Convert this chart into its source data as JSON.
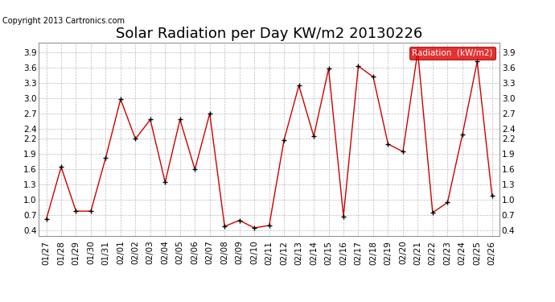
{
  "title": "Solar Radiation per Day KW/m2 20130226",
  "copyright": "Copyright 2013 Cartronics.com",
  "legend_label": "Radiation  (kW/m2)",
  "dates": [
    "01/27",
    "01/28",
    "01/29",
    "01/30",
    "01/31",
    "02/01",
    "02/02",
    "02/03",
    "02/04",
    "02/05",
    "02/06",
    "02/07",
    "02/08",
    "02/09",
    "02/10",
    "02/11",
    "02/12",
    "02/13",
    "02/14",
    "02/15",
    "02/16",
    "02/17",
    "02/18",
    "02/19",
    "02/20",
    "02/21",
    "02/22",
    "02/23",
    "02/24",
    "02/25",
    "02/26"
  ],
  "values": [
    0.62,
    1.65,
    0.78,
    0.78,
    1.83,
    2.98,
    2.2,
    2.58,
    1.35,
    2.58,
    1.6,
    2.7,
    0.48,
    0.6,
    0.45,
    0.5,
    2.18,
    3.25,
    2.25,
    3.58,
    0.68,
    3.63,
    3.42,
    2.1,
    1.95,
    3.92,
    0.75,
    0.95,
    2.28,
    3.72,
    1.08
  ],
  "ylim": [
    0.3,
    4.1
  ],
  "yticks": [
    0.4,
    0.7,
    1.0,
    1.3,
    1.6,
    1.9,
    2.2,
    2.4,
    2.7,
    3.0,
    3.3,
    3.6,
    3.9
  ],
  "line_color": "#cc0000",
  "marker_color": "#000000",
  "bg_color": "#ffffff",
  "plot_bg_color": "#ffffff",
  "grid_color": "#bbbbbb",
  "legend_bg": "#dd0000",
  "legend_text_color": "#ffffff",
  "title_fontsize": 13,
  "copyright_fontsize": 7,
  "tick_fontsize": 7.5,
  "legend_fontsize": 7.5
}
